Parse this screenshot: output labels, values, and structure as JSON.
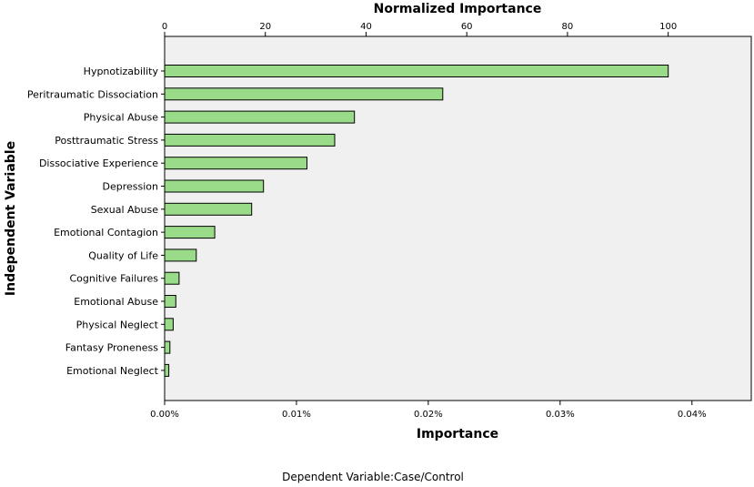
{
  "chart_data": {
    "type": "bar",
    "orientation": "horizontal",
    "title": "",
    "xlabel": "Importance",
    "x2label": "Normalized Importance",
    "ylabel": "Independent Variable",
    "footnote": "Dependent Variable:Case/Control",
    "categories": [
      "Hypnotizability",
      "Peritraumatic Dissociation",
      "Physical Abuse",
      "Posttraumatic Stress",
      "Dissociative Experience",
      "Depression",
      "Sexual Abuse",
      "Emotional Contagion",
      "Quality of Life",
      "Cognitive Failures",
      "Emotional Abuse",
      "Physical Neglect",
      "Fantasy Proneness",
      "Emotional Neglect"
    ],
    "values": [
      0.000382,
      0.000211,
      0.000144,
      0.000129,
      0.000108,
      7.5e-05,
      6.6e-05,
      3.8e-05,
      2.4e-05,
      1.1e-05,
      8.5e-06,
      6.5e-06,
      4e-06,
      3.2e-06
    ],
    "normalized_values": [
      100,
      55.2,
      37.7,
      33.8,
      28.3,
      19.6,
      17.3,
      9.9,
      6.3,
      2.9,
      2.2,
      1.7,
      1.0,
      0.8
    ],
    "xlim": [
      0,
      0.000445
    ],
    "x_ticks": [
      0,
      0.0001,
      0.0002,
      0.0003,
      0.0004
    ],
    "x_tick_labels": [
      "0.00%",
      "0.01%",
      "0.02%",
      "0.03%",
      "0.04%"
    ],
    "x2lim": [
      0,
      116.5
    ],
    "x2_ticks": [
      0,
      20,
      40,
      60,
      80,
      100
    ],
    "x2_tick_labels": [
      "0",
      "20",
      "40",
      "60",
      "80",
      "100"
    ],
    "grid": false,
    "colors": {
      "bar_fill": "#99db88",
      "bar_stroke": "#000000",
      "plot_background": "#f0f0f0",
      "page_background": "#ffffff"
    }
  }
}
